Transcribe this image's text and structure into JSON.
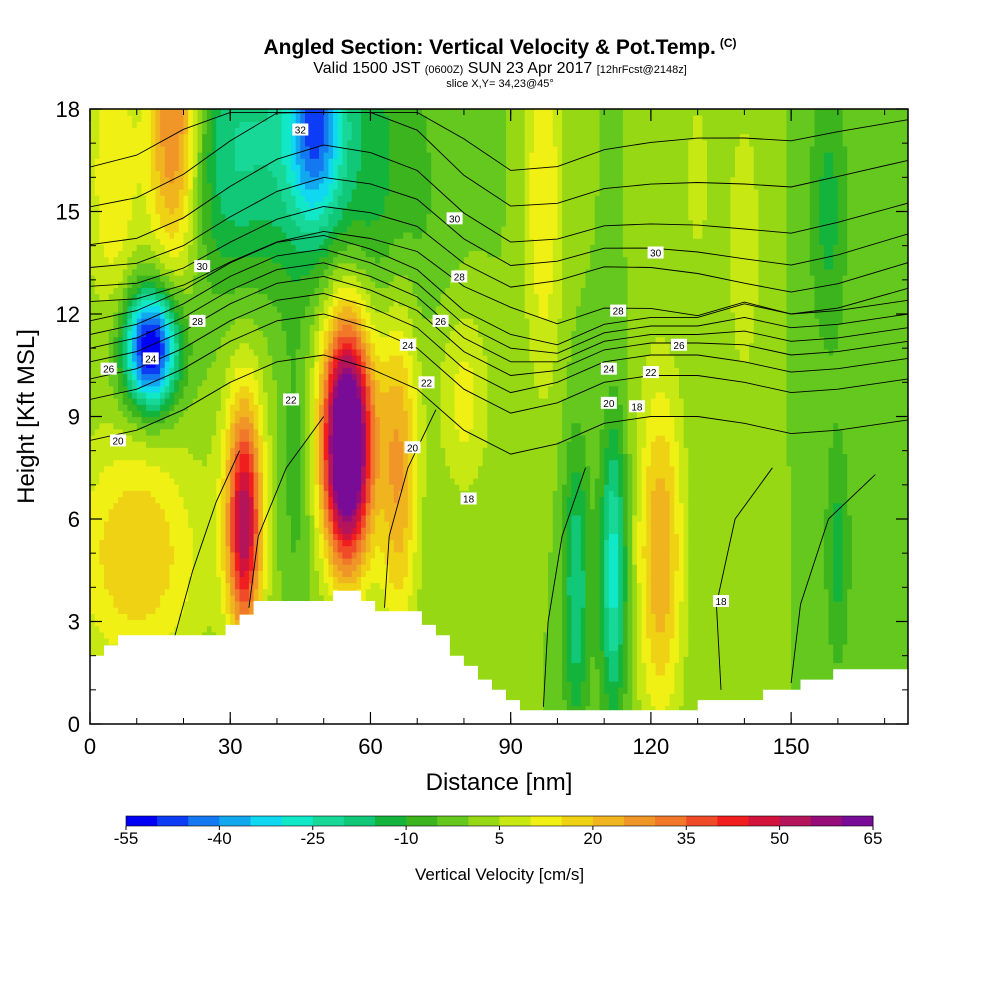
{
  "header": {
    "title": "Angled Section: Vertical Velocity & Pot.Temp.",
    "title_mark": "(C)",
    "valid_prefix": "Valid 1500 JST",
    "valid_utc": "(0600Z)",
    "valid_date": "SUN 23 Apr 2017",
    "forecast": "[12hrFcst@2148z]",
    "slice": "slice X,Y= 34,23@45°"
  },
  "chart_data": {
    "type": "heatmap",
    "title": "Angled Section: Vertical Velocity & Pot.Temp.",
    "xlabel": "Distance [nm]",
    "ylabel": "Height [Kft MSL]",
    "xlim": [
      0,
      175
    ],
    "ylim": [
      0,
      18
    ],
    "xticks": [
      0,
      30,
      60,
      90,
      120,
      150
    ],
    "yticks": [
      0,
      3,
      6,
      9,
      12,
      15,
      18
    ],
    "colorbar": {
      "title": "Vertical Velocity [cm/s]",
      "labels": [
        "-55",
        "-40",
        "-25",
        "-10",
        "5",
        "20",
        "35",
        "50",
        "65"
      ],
      "levels": [
        -55,
        -50,
        -45,
        -40,
        -35,
        -30,
        -25,
        -20,
        -15,
        -10,
        -5,
        0,
        5,
        10,
        15,
        20,
        25,
        30,
        35,
        40,
        45,
        50,
        55,
        60,
        65
      ],
      "colors": [
        "#0000f5",
        "#0d3cf5",
        "#1478f0",
        "#12a8f0",
        "#10d8f0",
        "#10e8c8",
        "#18d898",
        "#10c878",
        "#14b43c",
        "#3cb41e",
        "#64c81e",
        "#96d814",
        "#c8e814",
        "#f0f014",
        "#f0d214",
        "#f0b41e",
        "#f09628",
        "#f07828",
        "#f04b28",
        "#f01e1e",
        "#d2143c",
        "#b4145a",
        "#960c78",
        "#780c96"
      ]
    },
    "series": [
      {
        "name": "Vertical Velocity",
        "units": "cm/s",
        "extrema": [
          {
            "x": 13,
            "y": 11.0,
            "value": -55
          },
          {
            "x": 48,
            "y": 17.5,
            "value": -32
          },
          {
            "x": 55,
            "y": 8.0,
            "value": 65
          },
          {
            "x": 33,
            "y": 5.8,
            "value": 45
          },
          {
            "x": 112,
            "y": 4.5,
            "value": -28
          },
          {
            "x": 104,
            "y": 4.0,
            "value": -20
          },
          {
            "x": 122,
            "y": 5.0,
            "value": 25
          },
          {
            "x": 18,
            "y": 17.5,
            "value": 35
          }
        ]
      },
      {
        "name": "Pot.Temp.",
        "units": "C",
        "contour_labels": [
          {
            "text": "32",
            "x": 45,
            "y": 17.4
          },
          {
            "text": "30",
            "x": 78,
            "y": 14.8
          },
          {
            "text": "30",
            "x": 121,
            "y": 13.8
          },
          {
            "text": "30",
            "x": 24,
            "y": 13.4
          },
          {
            "text": "28",
            "x": 79,
            "y": 13.1
          },
          {
            "text": "28",
            "x": 113,
            "y": 12.1
          },
          {
            "text": "28",
            "x": 23,
            "y": 11.8
          },
          {
            "text": "26",
            "x": 75,
            "y": 11.8
          },
          {
            "text": "26",
            "x": 126,
            "y": 11.1
          },
          {
            "text": "26",
            "x": 4,
            "y": 10.4
          },
          {
            "text": "24",
            "x": 13,
            "y": 10.7
          },
          {
            "text": "24",
            "x": 68,
            "y": 11.1
          },
          {
            "text": "24",
            "x": 111,
            "y": 10.4
          },
          {
            "text": "22",
            "x": 72,
            "y": 10.0
          },
          {
            "text": "22",
            "x": 120,
            "y": 10.3
          },
          {
            "text": "22",
            "x": 43,
            "y": 9.5
          },
          {
            "text": "20",
            "x": 111,
            "y": 9.4
          },
          {
            "text": "20",
            "x": 6,
            "y": 8.3
          },
          {
            "text": "20",
            "x": 69,
            "y": 8.1
          },
          {
            "text": "18",
            "x": 117,
            "y": 9.3
          },
          {
            "text": "18",
            "x": 81,
            "y": 6.6
          },
          {
            "text": "18",
            "x": 135,
            "y": 3.6
          }
        ]
      }
    ]
  }
}
